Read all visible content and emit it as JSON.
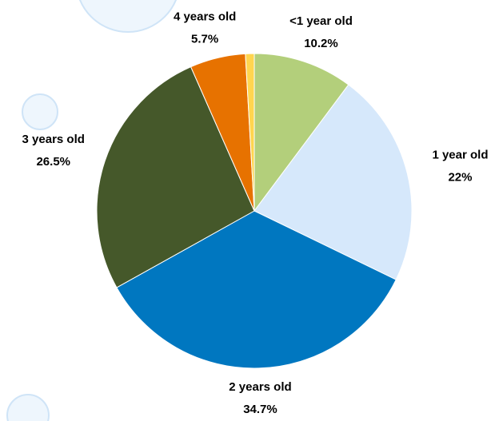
{
  "chart_data": {
    "type": "pie",
    "categories": [
      "<1 year old",
      "1 year old",
      "2 years old",
      "3 years old",
      "4 years old",
      null
    ],
    "values": [
      10.2,
      22,
      34.7,
      26.5,
      5.7,
      0.9
    ],
    "value_labels": [
      "10.2%",
      "22%",
      "34.7%",
      "26.5%",
      "5.7%",
      null
    ],
    "colors": [
      "#b3cf7b",
      "#d6e8fb",
      "#0077c0",
      "#45582a",
      "#e77200",
      "#ffd54f"
    ]
  }
}
